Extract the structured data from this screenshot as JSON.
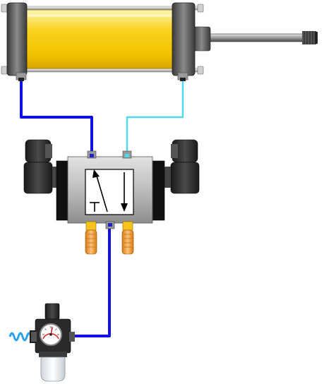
{
  "diagram": {
    "components": {
      "cylinder": "double-acting-pneumatic-cylinder",
      "valve": "double-solenoid-directional-valve",
      "frl": "filter-regulator-unit",
      "mufflers": 2
    },
    "lines": {
      "supply": "#1010e6",
      "port-a": "#1010e6",
      "port-b": "#4fd8ee"
    },
    "colors": {
      "cylinder_barrel": "#f7d21e",
      "muffler": "#f0a030",
      "spring": "#2aa0ee",
      "valve_body": "#b8b8b8",
      "solenoid": "#2a2a2a"
    },
    "gauge_reading_fraction": 0.55
  }
}
